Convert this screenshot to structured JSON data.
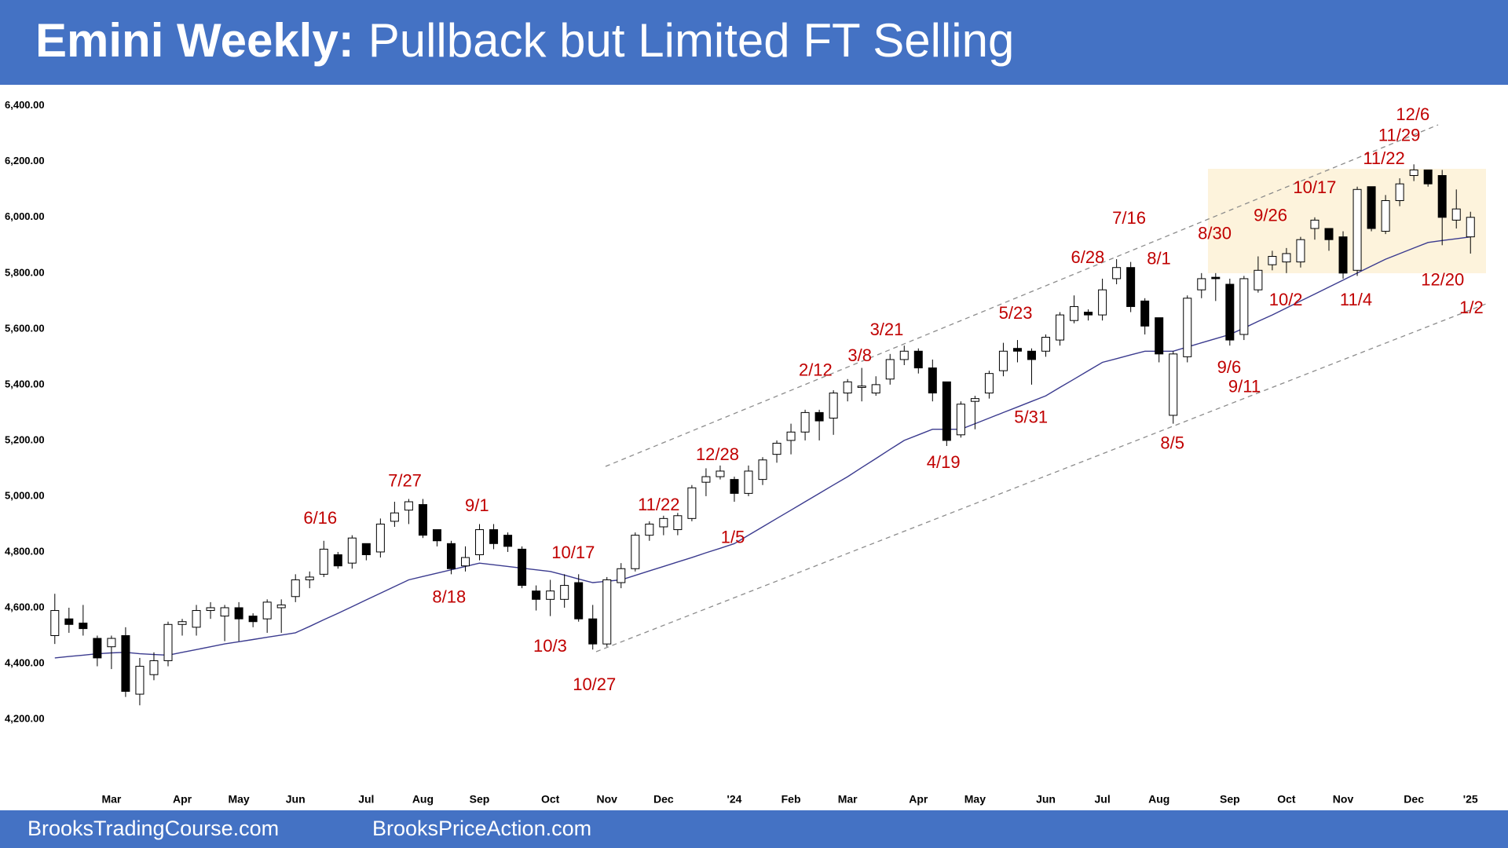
{
  "chart_data": {
    "type": "candlestick",
    "title_prefix": "Emini Weekly:",
    "title": "Pullback but Limited FT Selling",
    "footer": [
      "BrooksTradingCourse.com",
      "BrooksPriceAction.com"
    ],
    "ylim": [
      3990,
      6476
    ],
    "yticks": [
      {
        "value": 4200,
        "label": "4,200.00"
      },
      {
        "value": 4400,
        "label": "4,400.00"
      },
      {
        "value": 4600,
        "label": "4,600.00"
      },
      {
        "value": 4800,
        "label": "4,800.00"
      },
      {
        "value": 5000,
        "label": "5,000.00"
      },
      {
        "value": 5200,
        "label": "5,200.00"
      },
      {
        "value": 5400,
        "label": "5,400.00"
      },
      {
        "value": 5600,
        "label": "5,600.00"
      },
      {
        "value": 5800,
        "label": "5,800.00"
      },
      {
        "value": 6000,
        "label": "6,000.00"
      },
      {
        "value": 6200,
        "label": "6,200.00"
      },
      {
        "value": 6400,
        "label": "6,400.00"
      }
    ],
    "grid": false,
    "categories": [
      null,
      null,
      null,
      null,
      "Mar",
      null,
      null,
      null,
      null,
      "Apr",
      null,
      null,
      null,
      "May",
      null,
      null,
      null,
      "Jun",
      null,
      null,
      null,
      null,
      "Jul",
      null,
      null,
      null,
      "Aug",
      null,
      null,
      null,
      "Sep",
      null,
      null,
      null,
      null,
      "Oct",
      null,
      null,
      null,
      "Nov",
      null,
      null,
      null,
      "Dec",
      null,
      null,
      null,
      null,
      "'24",
      null,
      null,
      null,
      "Feb",
      null,
      null,
      null,
      "Mar",
      null,
      null,
      null,
      null,
      "Apr",
      null,
      null,
      null,
      "May",
      null,
      null,
      null,
      null,
      "Jun",
      null,
      null,
      null,
      "Jul",
      null,
      null,
      null,
      "Aug",
      null,
      null,
      null,
      null,
      "Sep",
      null,
      null,
      null,
      "Oct",
      null,
      null,
      null,
      "Nov",
      null,
      null,
      null,
      null,
      "Dec",
      null,
      null,
      null,
      "'25"
    ],
    "open": [
      4500,
      4560,
      4545,
      4490,
      4460,
      4500,
      4290,
      4360,
      4410,
      4540,
      4530,
      4590,
      4570,
      4600,
      4570,
      4560,
      4600,
      4640,
      4700,
      4720,
      4790,
      4760,
      4830,
      4800,
      4910,
      4950,
      4970,
      4880,
      4830,
      4750,
      4790,
      4880,
      4860,
      4810,
      4660,
      4630,
      4630,
      4690,
      4560,
      4470,
      4690,
      4740,
      4860,
      4890,
      4880,
      4920,
      5050,
      5070,
      5060,
      5010,
      5060,
      5150,
      5200,
      5230,
      5300,
      5280,
      5370,
      5390,
      5370,
      5420,
      5490,
      5520,
      5460,
      5410,
      5220,
      5340,
      5370,
      5450,
      5530,
      5520,
      5520,
      5560,
      5630,
      5660,
      5650,
      5780,
      5820,
      5700,
      5640,
      5290,
      5500,
      5740,
      5785,
      5760,
      5580,
      5740,
      5830,
      5840,
      5840,
      5960,
      5960,
      5930,
      5810,
      6110,
      5950,
      6060,
      6150,
      6170,
      6150,
      5990,
      5930
    ],
    "high": [
      4650,
      4600,
      4610,
      4500,
      4500,
      4530,
      4420,
      4440,
      4550,
      4560,
      4610,
      4620,
      4610,
      4620,
      4580,
      4630,
      4630,
      4720,
      4730,
      4840,
      4800,
      4860,
      4830,
      4920,
      4980,
      4990,
      4990,
      4880,
      4840,
      4820,
      4900,
      4900,
      4870,
      4820,
      4680,
      4700,
      4720,
      4720,
      4610,
      4710,
      4760,
      4870,
      4910,
      4930,
      4940,
      5040,
      5100,
      5110,
      5070,
      5110,
      5140,
      5200,
      5260,
      5310,
      5310,
      5380,
      5420,
      5460,
      5430,
      5510,
      5540,
      5530,
      5490,
      5410,
      5340,
      5360,
      5450,
      5550,
      5560,
      5530,
      5580,
      5660,
      5720,
      5670,
      5780,
      5850,
      5840,
      5710,
      5640,
      5520,
      5720,
      5800,
      5800,
      5780,
      5790,
      5860,
      5880,
      5890,
      5930,
      6000,
      5960,
      5950,
      6110,
      6110,
      6080,
      6140,
      6190,
      6170,
      6170,
      6100,
      6020
    ],
    "low": [
      4470,
      4510,
      4500,
      4390,
      4380,
      4280,
      4250,
      4340,
      4390,
      4500,
      4500,
      4560,
      4480,
      4480,
      4530,
      4510,
      4510,
      4620,
      4670,
      4710,
      4740,
      4740,
      4770,
      4780,
      4890,
      4900,
      4850,
      4820,
      4720,
      4730,
      4770,
      4810,
      4800,
      4670,
      4590,
      4570,
      4600,
      4550,
      4450,
      4460,
      4670,
      4730,
      4840,
      4860,
      4860,
      4910,
      5000,
      5060,
      4980,
      5000,
      5040,
      5120,
      5150,
      5200,
      5200,
      5220,
      5340,
      5340,
      5360,
      5400,
      5470,
      5440,
      5340,
      5180,
      5210,
      5240,
      5350,
      5430,
      5480,
      5400,
      5500,
      5540,
      5620,
      5630,
      5630,
      5760,
      5660,
      5580,
      5480,
      5260,
      5480,
      5710,
      5700,
      5540,
      5560,
      5730,
      5810,
      5800,
      5820,
      5920,
      5880,
      5780,
      5790,
      5950,
      5940,
      6040,
      6130,
      6110,
      5900,
      5960,
      5870
    ],
    "close": [
      4590,
      4540,
      4525,
      4420,
      4490,
      4300,
      4390,
      4410,
      4540,
      4550,
      4590,
      4600,
      4600,
      4560,
      4550,
      4620,
      4610,
      4700,
      4710,
      4810,
      4750,
      4850,
      4790,
      4900,
      4940,
      4980,
      4860,
      4840,
      4740,
      4780,
      4880,
      4830,
      4820,
      4680,
      4630,
      4660,
      4680,
      4560,
      4470,
      4700,
      4740,
      4860,
      4900,
      4920,
      4930,
      5030,
      5070,
      5090,
      5010,
      5090,
      5130,
      5190,
      5230,
      5300,
      5270,
      5370,
      5410,
      5395,
      5400,
      5490,
      5520,
      5460,
      5370,
      5200,
      5330,
      5350,
      5440,
      5520,
      5520,
      5490,
      5570,
      5650,
      5680,
      5650,
      5740,
      5820,
      5680,
      5610,
      5510,
      5510,
      5710,
      5780,
      5780,
      5560,
      5780,
      5810,
      5860,
      5870,
      5920,
      5990,
      5920,
      5800,
      6100,
      5960,
      6060,
      6120,
      6170,
      6120,
      6000,
      6030,
      6000
    ],
    "up_color": "#ffffff",
    "down_color": "#000000",
    "wick_color": "#000000",
    "moving_average": {
      "color": "#3b3b8f",
      "values": [
        4420,
        4425,
        4430,
        4435,
        4438,
        4440,
        4435,
        4432,
        4430,
        4440,
        4450,
        4460,
        4470,
        4478,
        4486,
        4494,
        4502,
        4510,
        4533,
        4557,
        4580,
        4604,
        4628,
        4652,
        4676,
        4700,
        4712,
        4724,
        4736,
        4748,
        4760,
        4754,
        4748,
        4742,
        4736,
        4730,
        4717,
        4703,
        4690,
        4695,
        4700,
        4716,
        4732,
        4748,
        4764,
        4780,
        4797,
        4813,
        4830,
        4860,
        4890,
        4920,
        4950,
        4980,
        5010,
        5040,
        5070,
        5103,
        5135,
        5168,
        5200,
        5220,
        5240,
        5240,
        5240,
        5260,
        5280,
        5300,
        5320,
        5340,
        5360,
        5390,
        5420,
        5450,
        5480,
        5493,
        5507,
        5520,
        5520,
        5520,
        5535,
        5550,
        5565,
        5580,
        5603,
        5627,
        5650,
        5675,
        5700,
        5725,
        5750,
        5775,
        5800,
        5825,
        5850,
        5870,
        5890,
        5910,
        5917,
        5923,
        5930
      ]
    },
    "annotations": [
      "6/16",
      "7/27",
      "9/1",
      "8/18",
      "10/17",
      "10/3",
      "10/27",
      "11/22",
      "12/28",
      "1/5",
      "2/12",
      "3/8",
      "3/21",
      "4/19",
      "5/23",
      "5/31",
      "6/28",
      "7/16",
      "8/1",
      "8/30",
      "9/26",
      "10/17",
      "11/22",
      "11/29",
      "12/6",
      "8/5",
      "9/6",
      "9/11",
      "10/2",
      "11/4",
      "12/20",
      "1/2"
    ]
  }
}
